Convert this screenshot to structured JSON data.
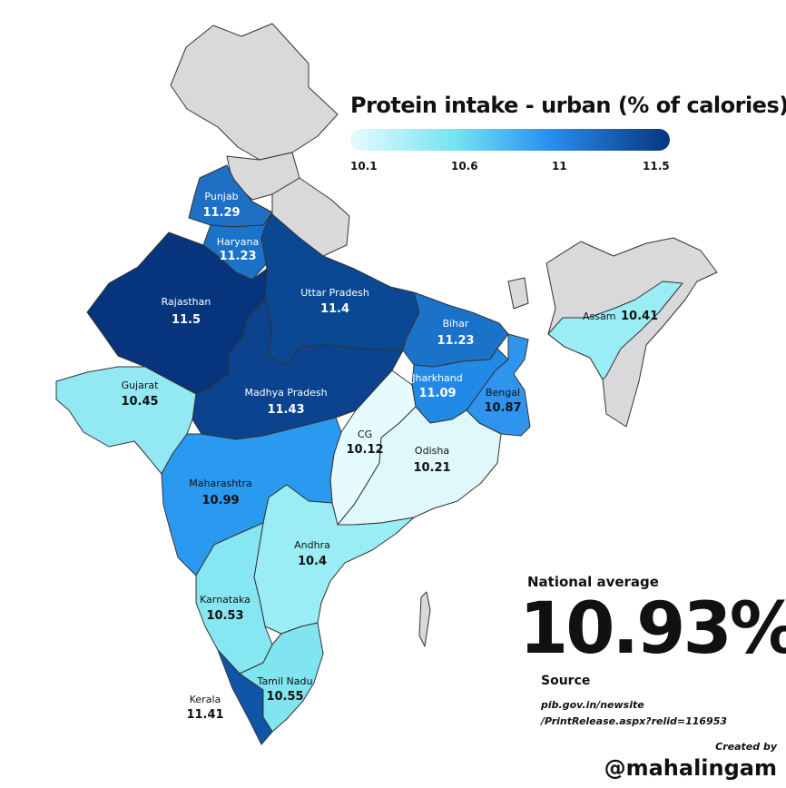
{
  "title": "Protein intake - urban (% of calories)",
  "legend": {
    "ticks": [
      "10.1",
      "10.6",
      "11",
      "11.5"
    ],
    "colors": [
      "#e6fbfd",
      "#74e3f2",
      "#2b8ff0",
      "#06357e"
    ]
  },
  "states": [
    {
      "name": "Punjab",
      "value": "11.29",
      "color": "#1e70c4"
    },
    {
      "name": "Haryana",
      "value": "11.23",
      "color": "#1a73c9"
    },
    {
      "name": "Rajasthan",
      "value": "11.5",
      "color": "#06357e"
    },
    {
      "name": "Uttar Pradesh",
      "value": "11.4",
      "color": "#0a4894"
    },
    {
      "name": "Bihar",
      "value": "11.23",
      "color": "#1a73c9"
    },
    {
      "name": "Gujarat",
      "value": "10.45",
      "color": "#92e9f3"
    },
    {
      "name": "Madhya Pradesh",
      "value": "11.43",
      "color": "#0b438e"
    },
    {
      "name": "Jharkhand",
      "value": "11.09",
      "color": "#2389e6"
    },
    {
      "name": "Bengal",
      "value": "10.87",
      "color": "#2e94ee"
    },
    {
      "name": "Assam",
      "value": "10.41",
      "color": "#9aedf4"
    },
    {
      "name": "CG",
      "value": "10.12",
      "color": "#e6fbfd"
    },
    {
      "name": "Odisha",
      "value": "10.21",
      "color": "#def8fb"
    },
    {
      "name": "Maharashtra",
      "value": "10.99",
      "color": "#2a9af0"
    },
    {
      "name": "Andhra",
      "value": "10.4",
      "color": "#9bedf5"
    },
    {
      "name": "Karnataka",
      "value": "10.53",
      "color": "#86e6f2"
    },
    {
      "name": "Tamil Nadu",
      "value": "10.55",
      "color": "#80e4f1"
    },
    {
      "name": "Kerala",
      "value": "11.41",
      "color": "#0f55a8"
    }
  ],
  "no_data_color": "#d9d9dc",
  "national_average": {
    "label": "National average",
    "value": "10.93%"
  },
  "source": {
    "label": "Source",
    "text": "pib.gov.in/newsite /PrintRelease.aspx?relid=116953"
  },
  "credit": {
    "label": "Created by",
    "handle": "@mahalingam"
  }
}
